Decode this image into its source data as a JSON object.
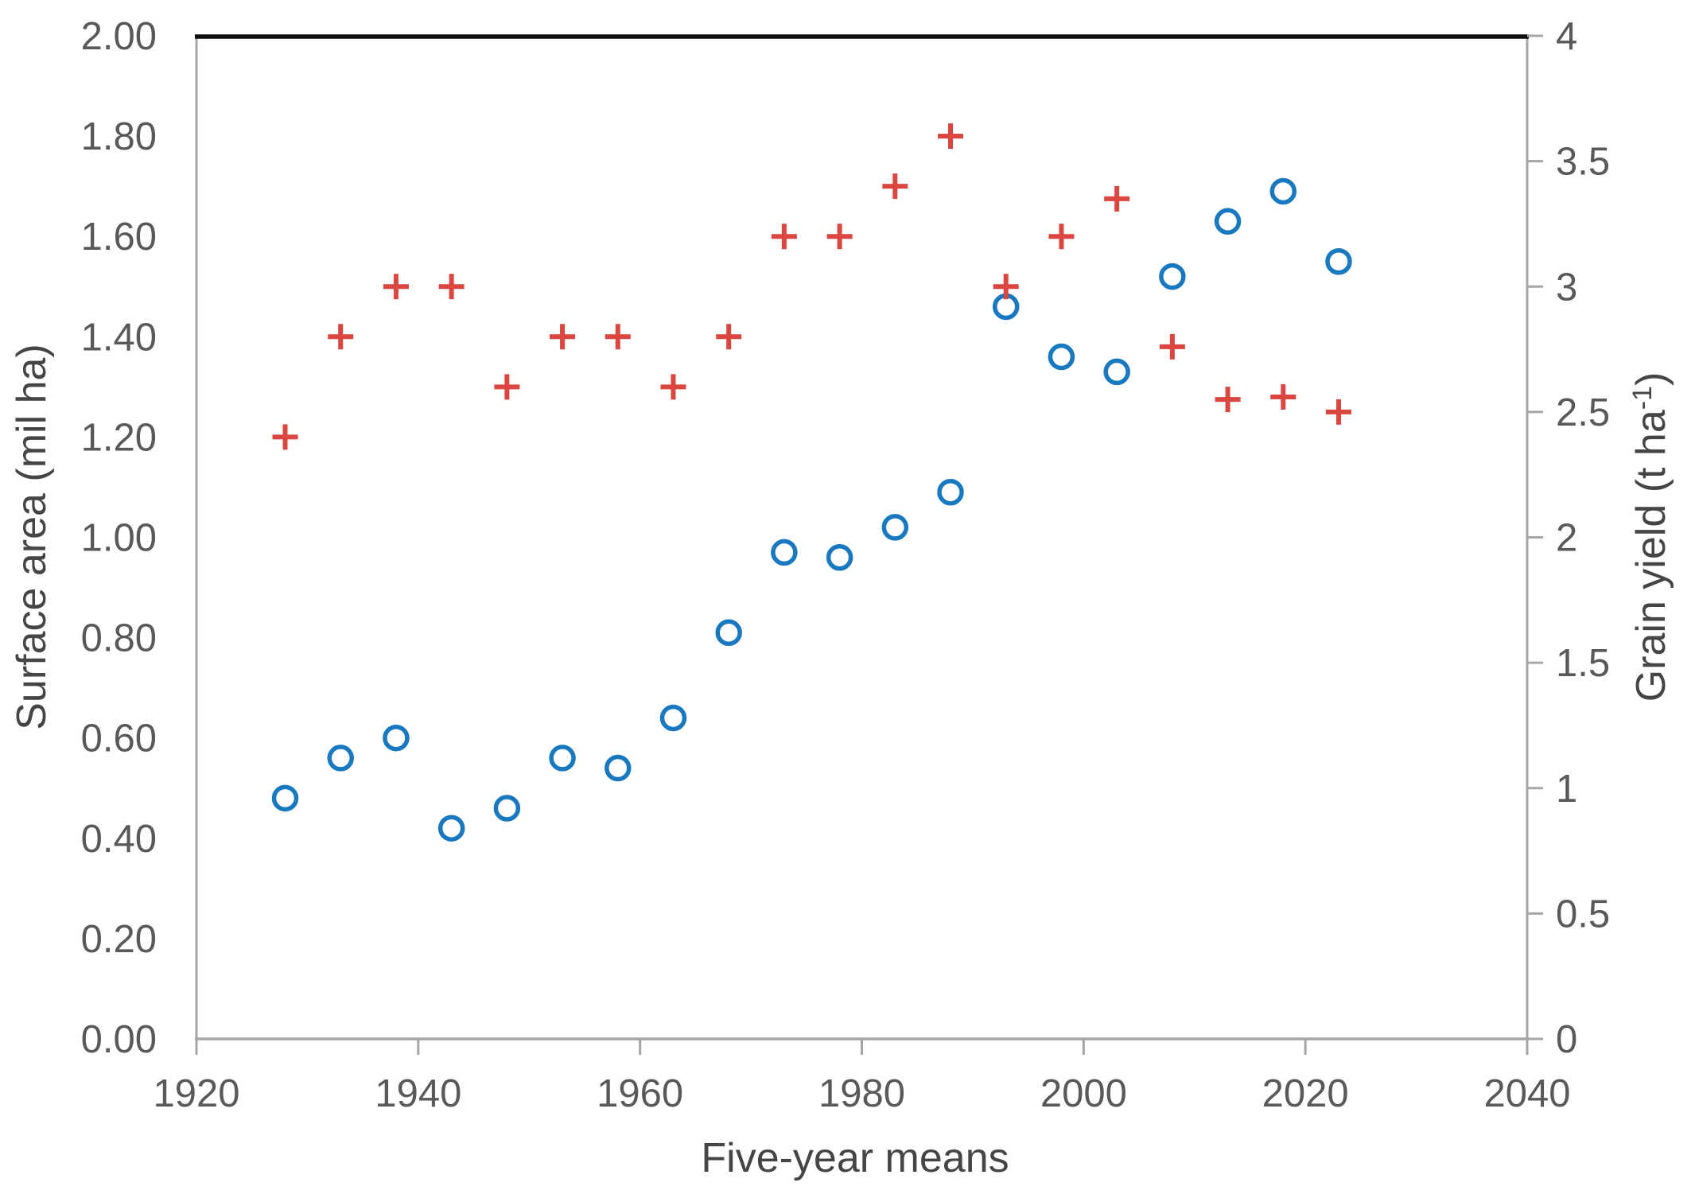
{
  "chart_data": {
    "type": "scatter",
    "title": "",
    "xlabel": "Five-year means",
    "ylabel_left": "Surface area (mil ha)",
    "ylabel_right": {
      "pre": "Grain yield (t ha",
      "sup": "-1",
      "post": ")"
    },
    "xlim": [
      1920,
      2040
    ],
    "xticks": [
      1920,
      1940,
      1960,
      1980,
      2000,
      2020,
      2040
    ],
    "ylim_left": [
      0,
      2
    ],
    "yticks_left": [
      0,
      0.2,
      0.4,
      0.6,
      0.8,
      1,
      1.2,
      1.4,
      1.6,
      1.8,
      2
    ],
    "ylim_right": [
      0,
      4
    ],
    "yticks_right": [
      0,
      0.5,
      1,
      1.5,
      2,
      2.5,
      3,
      3.5,
      4
    ],
    "grid": false,
    "legend_position": "none",
    "x_years": [
      1928,
      1933,
      1938,
      1943,
      1948,
      1953,
      1958,
      1963,
      1968,
      1973,
      1978,
      1983,
      1988,
      1993,
      1998,
      2003,
      2008,
      2013,
      2018,
      2023
    ],
    "series": [
      {
        "name": "Surface area",
        "axis": "left",
        "marker": "circle",
        "color": "#1879c0",
        "values": [
          0.48,
          0.56,
          0.6,
          0.42,
          0.46,
          0.56,
          0.54,
          0.64,
          0.81,
          0.97,
          0.96,
          1.02,
          1.09,
          1.46,
          1.36,
          1.33,
          1.52,
          1.63,
          1.69,
          1.55
        ]
      },
      {
        "name": "Grain yield",
        "axis": "right",
        "marker": "plus",
        "color": "#dc4641",
        "values": [
          2.4,
          2.8,
          3.0,
          3.0,
          2.6,
          2.8,
          2.8,
          2.6,
          2.8,
          3.2,
          3.2,
          3.4,
          3.6,
          3.0,
          3.2,
          3.35,
          2.76,
          2.55,
          2.56,
          2.5
        ]
      }
    ],
    "colors": {
      "surface": "#1879c0",
      "yield": "#dc4641",
      "axis": "#a6a6a6",
      "tick_text": "#595959",
      "title_text": "#454545",
      "top_border": "#0d0d0d"
    }
  }
}
